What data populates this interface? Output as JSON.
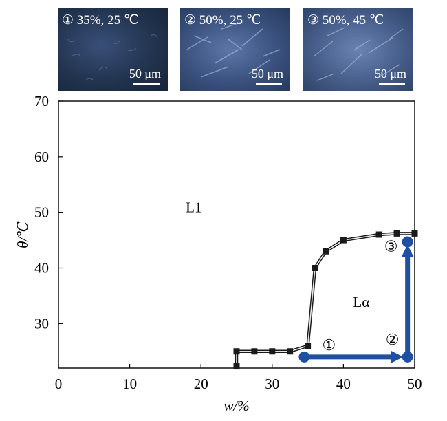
{
  "micrographs": [
    {
      "caption": "① 35%,  25 ℃",
      "scale": "50 μm"
    },
    {
      "caption": "② 50%,  25 ℃",
      "scale": "50 μm"
    },
    {
      "caption": "③ 50%,  45 ℃",
      "scale": "50 μm"
    }
  ],
  "chart_data": {
    "type": "line",
    "xlabel": "w/%",
    "ylabel": "θ/℃",
    "xlim": [
      0,
      50
    ],
    "ylim": [
      22,
      70
    ],
    "xticks": [
      0,
      10,
      20,
      30,
      40,
      50
    ],
    "yticks": [
      30,
      40,
      50,
      60,
      70
    ],
    "grid": false,
    "series": [
      {
        "x": [
          25,
          25,
          27.5,
          30,
          32.5,
          35,
          36,
          37.5,
          40,
          45,
          47.5,
          50
        ],
        "y": [
          22.3,
          25,
          25,
          25,
          25,
          26,
          40,
          43,
          45,
          46,
          46.2,
          46.2
        ],
        "color": "#1a1a1a"
      }
    ],
    "regions": [
      {
        "label": "L1",
        "x": 19,
        "y": 50
      },
      {
        "label": "Lα",
        "x": 42.5,
        "y": 33
      }
    ],
    "annotations": [
      {
        "label": "①",
        "x": 34.5,
        "y": 24
      },
      {
        "label": "②",
        "x": 49,
        "y": 24
      },
      {
        "label": "③",
        "x": 49,
        "y": 44.7
      }
    ],
    "path_color": "#1f4fa3"
  }
}
